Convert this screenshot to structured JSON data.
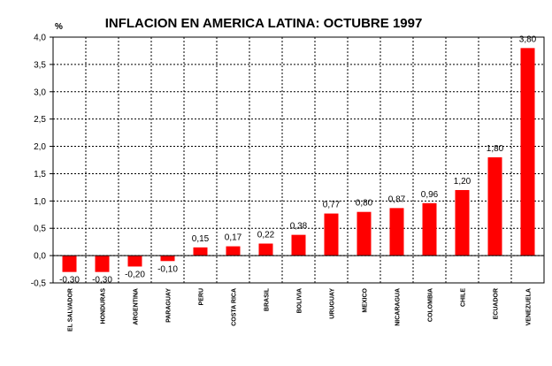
{
  "chart_data": {
    "type": "bar",
    "title": "INFLACION EN AMERICA LATINA: OCTUBRE 1997",
    "ylabel": "%",
    "xlabel": "",
    "ylim": [
      -0.5,
      4.0
    ],
    "yticks": [
      "4,0",
      "3,5",
      "3,0",
      "2,5",
      "2,0",
      "1,5",
      "1,0",
      "0,5",
      "0,0",
      "-0,5"
    ],
    "categories": [
      "EL SALVADOR",
      "HONDURAS",
      "ARGENTINA",
      "PARAGUAY",
      "PERU",
      "COSTA RICA",
      "BRASIL",
      "BOLIVIA",
      "URUGUAY",
      "MEXICO",
      "NICARAGUA",
      "COLOMBIA",
      "CHILE",
      "ECUADOR",
      "VENEZUELA"
    ],
    "values": [
      -0.3,
      -0.3,
      -0.2,
      -0.1,
      0.15,
      0.17,
      0.22,
      0.38,
      0.77,
      0.8,
      0.87,
      0.96,
      1.2,
      1.8,
      3.8
    ],
    "data_labels": [
      "-0,30",
      "-0,30",
      "-0,20",
      "-0,10",
      "0,15",
      "0,17",
      "0,22",
      "0,38",
      "0,77",
      "0,80",
      "0,87",
      "0,96",
      "1,20",
      "1,80",
      "3,80"
    ],
    "bar_color": "#ff0000",
    "grid": true,
    "legend": "none"
  }
}
